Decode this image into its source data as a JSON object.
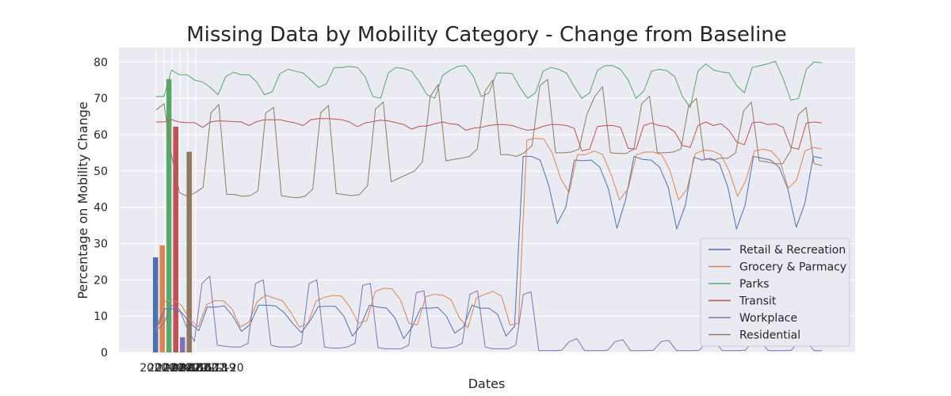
{
  "chart_data": {
    "type": "line",
    "title": "Missing Data by Mobility Category - Change from Baseline",
    "xlabel": "Dates",
    "ylabel": "Percentage on Mobility Change",
    "ylim": [
      0,
      84
    ],
    "yticks": [
      0,
      10,
      20,
      30,
      40,
      50,
      60,
      70,
      80
    ],
    "x_tick_labels": [
      "2020-02-15",
      "2020-02-16",
      "2020-02-17",
      "2020-02-18",
      "2020-02-19",
      "2020-02-20"
    ],
    "grid": true,
    "legend_position": "lower-right",
    "colors": {
      "plot_bg": "#eaeaf2",
      "grid": "#ffffff",
      "text": "#262626"
    },
    "series": [
      {
        "name": "Retail & Recreation",
        "color": "#4c72b0",
        "bar_value": 26.2,
        "values": [
          6,
          12,
          12,
          11,
          8,
          6,
          12.5,
          12.5,
          12.8,
          10,
          5.8,
          7.7,
          13,
          13,
          12.8,
          11,
          8,
          5.5,
          8.5,
          12.6,
          12.7,
          12.7,
          10,
          4.5,
          7.5,
          13,
          12.5,
          12.2,
          9.5,
          3.8,
          7,
          12.2,
          12.2,
          12.4,
          10,
          5.3,
          7,
          13,
          12.2,
          12.2,
          10.5,
          4.5,
          7.2,
          54,
          54,
          53,
          46,
          35.5,
          40,
          53,
          52.8,
          53,
          51,
          45,
          34.2,
          42,
          54,
          53.2,
          53,
          51,
          45.5,
          34,
          40.5,
          53.8,
          53,
          53.5,
          52,
          45.5,
          34,
          40.5,
          54,
          53.5,
          53,
          51,
          45.2,
          34.5,
          41,
          54,
          53.5
        ]
      },
      {
        "name": "Grocery & Parmacy",
        "color": "#dd8452",
        "bar_value": 29.5,
        "values": [
          6,
          14,
          14.5,
          13,
          9,
          7,
          13.2,
          14.3,
          14.2,
          12,
          7,
          8.3,
          14,
          15.8,
          15,
          14.2,
          11,
          7,
          8,
          14.2,
          15.2,
          15.7,
          15.5,
          12.5,
          8,
          8.8,
          16.8,
          17.7,
          17.5,
          14.5,
          8,
          7.6,
          15.4,
          16,
          15.8,
          14.5,
          9.5,
          6.8,
          15,
          16,
          16.8,
          15.5,
          7.5,
          8,
          58.5,
          59,
          58.8,
          55,
          48,
          44,
          54.5,
          54.5,
          55.5,
          54.5,
          49,
          42,
          45,
          54.5,
          55.2,
          55.2,
          54.5,
          50,
          42,
          45,
          54.8,
          55.7,
          55.5,
          54.5,
          50,
          43,
          47.5,
          55.5,
          56,
          55.5,
          53,
          45.2,
          47.5,
          55.5,
          56.5,
          56
        ]
      },
      {
        "name": "Parks",
        "color": "#55a868",
        "bar_value": 75.3,
        "values": [
          70.5,
          70.5,
          77.8,
          76.5,
          76.5,
          75,
          74.5,
          73,
          71,
          76,
          77.2,
          76.5,
          76.5,
          74.5,
          71,
          71.8,
          76.8,
          78,
          77.5,
          77,
          75,
          73,
          74,
          78.5,
          78.5,
          78.8,
          78.5,
          76,
          70.5,
          70,
          77,
          78.5,
          78.2,
          77.5,
          74.5,
          71,
          70,
          76.3,
          77.8,
          78.8,
          79,
          76,
          70.5,
          71.5,
          77,
          77,
          76.8,
          73,
          70,
          71.5,
          77.5,
          78.5,
          78,
          77,
          73.3,
          70,
          71.5,
          77.7,
          79,
          79,
          78,
          75,
          70,
          72,
          77.5,
          78,
          77.6,
          76,
          70.5,
          67.5,
          77.5,
          79.5,
          77.8,
          77.3,
          77,
          73.5,
          71.5,
          78.5,
          79,
          79.5,
          80.2,
          75.5,
          69.5,
          70,
          78,
          80,
          79.8
        ]
      },
      {
        "name": "Transit",
        "color": "#c44e52",
        "bar_value": 62.2,
        "values": [
          63.5,
          63.5,
          64.1,
          63.5,
          63.3,
          63.3,
          62,
          63.5,
          63.8,
          63.7,
          63.6,
          63.5,
          62.5,
          63.6,
          64.1,
          64.1,
          64.1,
          63.6,
          63.2,
          62.5,
          64.1,
          64.4,
          64.4,
          64.3,
          64.1,
          63.5,
          62.2,
          63.2,
          63.6,
          64,
          63.8,
          63.3,
          62.8,
          61.5,
          62.3,
          62.4,
          63,
          63.5,
          63,
          62.8,
          61.2,
          61.8,
          62,
          62.5,
          62.8,
          62.8,
          62.5,
          61.8,
          61.2,
          61.5,
          62.3,
          62.8,
          62.8,
          62.5,
          61.8,
          55.5,
          56,
          62.2,
          62.5,
          62.5,
          62,
          56.2,
          56,
          62.5,
          63.2,
          62.5,
          62.2,
          60.8,
          57,
          56.5,
          62.5,
          63.5,
          62.5,
          63,
          61.2,
          58,
          57.2,
          63.2,
          63.5,
          62.8,
          63,
          62,
          56.5,
          56,
          63.2,
          63.5,
          63.2
        ]
      },
      {
        "name": "Workplace",
        "color": "#8172b3",
        "bar_value": 4.2,
        "values": [
          6,
          8,
          13,
          12,
          7,
          3,
          19,
          21,
          2,
          1.7,
          1.5,
          1.5,
          2.5,
          19,
          20,
          2,
          1.5,
          1.5,
          1.5,
          2.5,
          19,
          20,
          1.5,
          1.2,
          1.2,
          1.5,
          2.5,
          18.5,
          19,
          1.3,
          1,
          1,
          1,
          2,
          16.5,
          17,
          1.5,
          1.2,
          1.2,
          1.5,
          2.5,
          16,
          17,
          1.5,
          1,
          1,
          1,
          2,
          16,
          16.7,
          0.5,
          0.5,
          0.5,
          0.6,
          3,
          3.8,
          0.5,
          0.5,
          0.5,
          0.6,
          3,
          3.5,
          0.5,
          0.5,
          0.5,
          0.6,
          3,
          3.3,
          0.5,
          0.5,
          0.5,
          0.6,
          3,
          3,
          0.5,
          0.5,
          0.5,
          0.6,
          3,
          3,
          0.5,
          0.5,
          0.5,
          0.6,
          3,
          3,
          0.5,
          0.5
        ]
      },
      {
        "name": "Residential",
        "color": "#937860",
        "bar_value": 55.3,
        "values": [
          66.8,
          68.5,
          54,
          44,
          43,
          44,
          45.5,
          66,
          68.3,
          43.6,
          43.5,
          43,
          43.2,
          44.5,
          66,
          67.5,
          43.2,
          42.8,
          42.6,
          43,
          45,
          66,
          68,
          43.8,
          43.5,
          43.2,
          43.5,
          46,
          67,
          69,
          47,
          48,
          49,
          50,
          52.5,
          70.5,
          73.8,
          52.8,
          53.2,
          53.5,
          54,
          56,
          72,
          75,
          54.5,
          54.5,
          54,
          55,
          57,
          73.5,
          75.2,
          55,
          55,
          55.2,
          56,
          65.5,
          70.5,
          73.2,
          55,
          54.8,
          54.8,
          56,
          68.5,
          70.6,
          55,
          55,
          55.2,
          56,
          68,
          70,
          53.5,
          53,
          53.5,
          53.5,
          55,
          66.5,
          69,
          52.8,
          52.5,
          52,
          52,
          55.5,
          65.5,
          67.5,
          52,
          51.5
        ]
      }
    ]
  }
}
